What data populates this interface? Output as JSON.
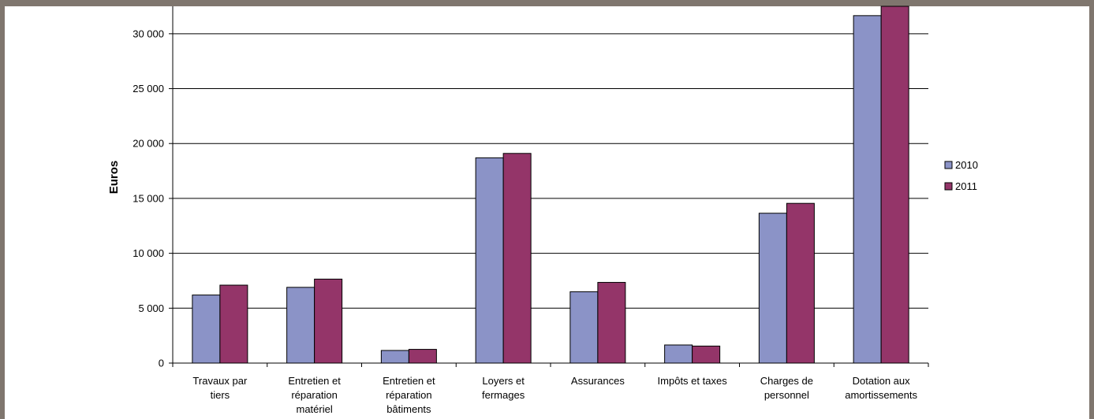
{
  "chart_data": {
    "type": "bar",
    "title": "",
    "xlabel": "",
    "ylabel": "Euros",
    "ylim": [
      0,
      32500
    ],
    "yticks": [
      0,
      5000,
      10000,
      15000,
      20000,
      25000,
      30000
    ],
    "ytick_labels": [
      "0",
      "5 000",
      "10 000",
      "15 000",
      "20 000",
      "25 000",
      "30 000"
    ],
    "grid": true,
    "legend_position": "right",
    "categories": [
      [
        "Travaux par",
        "tiers"
      ],
      [
        "Entretien et",
        "réparation",
        "matériel"
      ],
      [
        "Entretien et",
        "réparation",
        "bâtiments"
      ],
      [
        "Loyers et",
        "fermages"
      ],
      [
        "Assurances"
      ],
      [
        "Impôts et taxes"
      ],
      [
        "Charges de",
        "personnel"
      ],
      [
        "Dotation aux",
        "amortissements"
      ]
    ],
    "series": [
      {
        "name": "2010",
        "color": "#8b93c7",
        "values": [
          6200,
          6900,
          1150,
          18700,
          6500,
          1650,
          13650,
          31650
        ]
      },
      {
        "name": "2011",
        "color": "#943569",
        "values": [
          7100,
          7650,
          1250,
          19100,
          7350,
          1550,
          14550,
          32500
        ]
      }
    ]
  }
}
